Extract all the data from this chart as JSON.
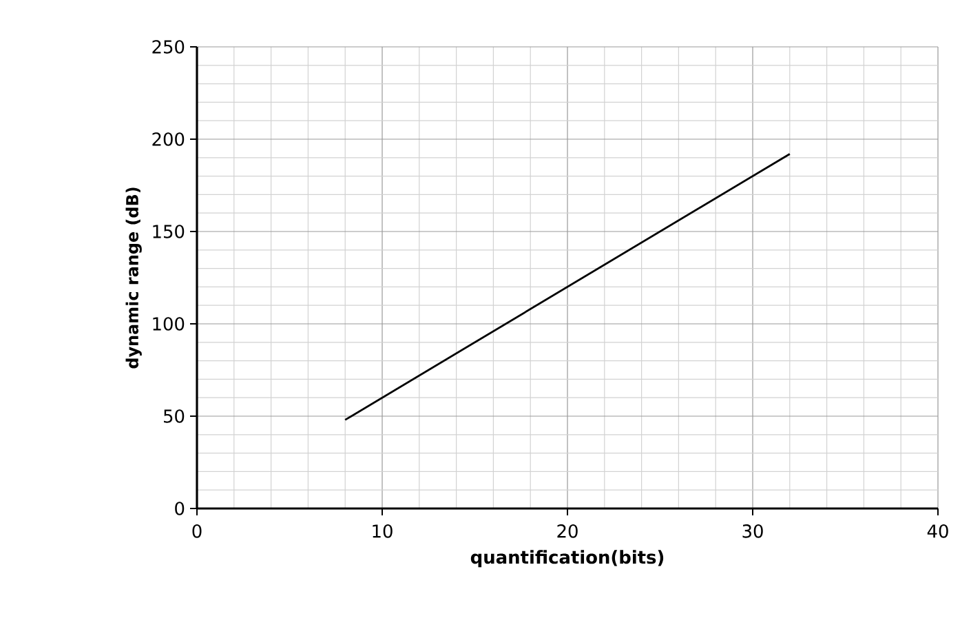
{
  "chart_data": {
    "type": "line",
    "xlabel": "quantification(bits)",
    "ylabel": "dynamic range (dB)",
    "x": [
      8,
      32
    ],
    "series": [
      {
        "color": "#000000",
        "values": [
          48,
          192
        ]
      }
    ],
    "xlim": [
      0,
      40
    ],
    "xticks": [
      0,
      10,
      20,
      30,
      40
    ],
    "ylim": [
      0,
      250
    ],
    "yticks": [
      0,
      50,
      100,
      150,
      200,
      250
    ],
    "grid": true,
    "marker": "none",
    "line_style": "solid"
  }
}
